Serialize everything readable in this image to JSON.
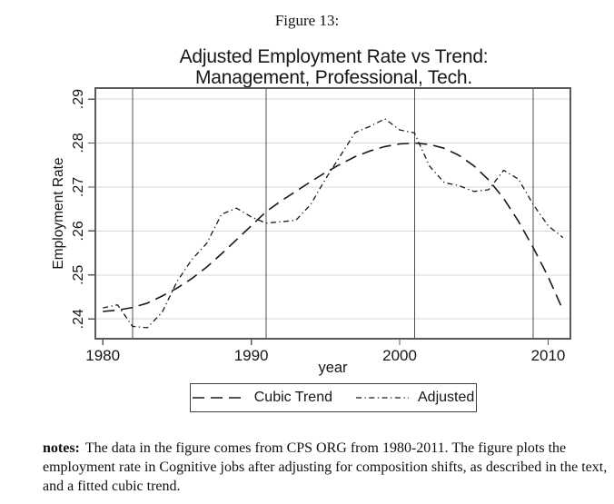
{
  "figure_label": "Figure 13:",
  "chart": {
    "title_line1": "Adjusted Employment Rate vs Trend:",
    "title_line2": "Management, Professional, Tech.",
    "xlabel": "year",
    "ylabel": "Employment Rate",
    "colors": {
      "series": "#1a1a1a",
      "border": "#5a5a5a",
      "gridline": "#d9d9d9",
      "ref_line": "#4f4f4f"
    }
  },
  "chart_data": {
    "type": "line",
    "title": "Adjusted Employment Rate vs Trend: Management, Professional, Tech.",
    "xlabel": "year",
    "ylabel": "Employment Rate",
    "xlim": [
      1979.5,
      2011.5
    ],
    "ylim": [
      0.2355,
      0.2925
    ],
    "xticks": [
      1980,
      1990,
      2000,
      2010
    ],
    "xtick_labels": [
      "1980",
      "1990",
      "2000",
      "2010"
    ],
    "yticks": [
      0.24,
      0.25,
      0.26,
      0.27,
      0.28,
      0.29
    ],
    "ytick_labels": [
      ".24",
      ".25",
      ".26",
      ".27",
      ".28",
      ".29"
    ],
    "ref_lines_x": [
      1982,
      1991,
      2001,
      2009
    ],
    "grid": true,
    "legend_position": "bottom",
    "x": [
      1980,
      1981,
      1982,
      1983,
      1984,
      1985,
      1986,
      1987,
      1988,
      1989,
      1990,
      1991,
      1992,
      1993,
      1994,
      1995,
      1996,
      1997,
      1998,
      1999,
      2000,
      2001,
      2002,
      2003,
      2004,
      2005,
      2006,
      2007,
      2008,
      2009,
      2010,
      2011
    ],
    "series": [
      {
        "name": "Cubic Trend",
        "dash": "long-dash",
        "values": [
          0.2417,
          0.242,
          0.2426,
          0.2436,
          0.2452,
          0.247,
          0.2492,
          0.2518,
          0.2548,
          0.258,
          0.2612,
          0.2644,
          0.2668,
          0.269,
          0.2712,
          0.2733,
          0.2752,
          0.2769,
          0.2782,
          0.2792,
          0.2798,
          0.28,
          0.2797,
          0.2788,
          0.2772,
          0.2748,
          0.2716,
          0.2674,
          0.2622,
          0.2562,
          0.2496,
          0.242
        ]
      },
      {
        "name": "Adjusted",
        "dash": "dash-dot",
        "values": [
          0.2425,
          0.2432,
          0.2383,
          0.238,
          0.2415,
          0.2485,
          0.2535,
          0.2572,
          0.2638,
          0.2652,
          0.2632,
          0.2618,
          0.2621,
          0.2624,
          0.266,
          0.2718,
          0.2771,
          0.2824,
          0.2838,
          0.2855,
          0.283,
          0.2823,
          0.2748,
          0.271,
          0.2703,
          0.269,
          0.2694,
          0.2738,
          0.2718,
          0.266,
          0.2612,
          0.2585
        ]
      }
    ]
  },
  "notes": {
    "label": "notes:",
    "line1": "The data in the figure comes from CPS ORG from 1980-2011. The figure plots the",
    "line2": "employment rate in Cognitive jobs after adjusting for composition shifts, as described in the text,",
    "line3": "and a fitted cubic trend."
  }
}
